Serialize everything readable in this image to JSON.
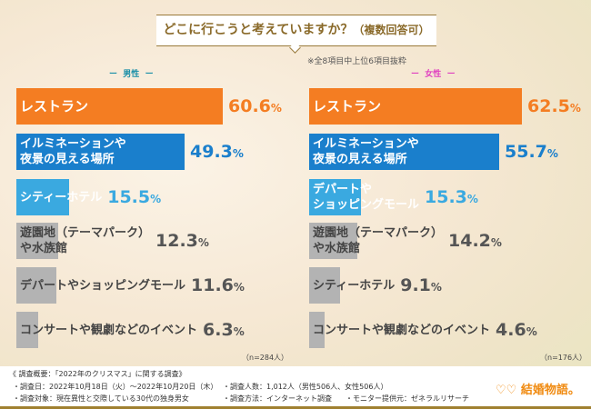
{
  "title": "どこに行こうと考えていますか？",
  "title_suffix": "（複数回答可）",
  "note": "※全8項目中上位6項目抜粋",
  "chart_data": [
    {
      "type": "bar",
      "orientation": "horizontal",
      "series_label": "男性",
      "n_label": "（n=284人）",
      "categories": [
        "レストラン",
        "イルミネーションや\n夜景の見える場所",
        "シティーホテル",
        "遊園地（テーマパーク）\nや水族館",
        "デパートやショッピングモール",
        "コンサートや観劇などのイベント"
      ],
      "values": [
        60.6,
        49.3,
        15.5,
        12.3,
        11.6,
        6.3
      ],
      "colors": [
        "#f47d22",
        "#1a7fcc",
        "#3aa9e0",
        "#b3b3b3",
        "#b3b3b3",
        "#b3b3b3"
      ]
    },
    {
      "type": "bar",
      "orientation": "horizontal",
      "series_label": "女性",
      "n_label": "（n=176人）",
      "categories": [
        "レストラン",
        "イルミネーションや\n夜景の見える場所",
        "デパートや\nショッピングモール",
        "遊園地（テーマパーク）\nや水族館",
        "シティーホテル",
        "コンサートや観劇などのイベント"
      ],
      "values": [
        62.5,
        55.7,
        15.3,
        14.2,
        9.1,
        4.6
      ],
      "colors": [
        "#f47d22",
        "#1a7fcc",
        "#3aa9e0",
        "#b3b3b3",
        "#b3b3b3",
        "#b3b3b3"
      ]
    }
  ],
  "colors": {
    "male_label": "#1a8fa8",
    "female_label": "#e040c0"
  },
  "footer": {
    "summary": "《 調査概要：「2022年のクリスマス」に関する調査》",
    "date": "・調査日：2022年10月18日（火）～2022年10月20日（木）",
    "target": "・調査対象：現在異性と交際している30代の独身男女",
    "count": "・調査人数：1,012人（男性506人、女性506人）",
    "method": "・調査方法：インターネット調査",
    "provider": "・モニター提供元：ゼネラルリサーチ",
    "logo": "結婚物語。"
  }
}
